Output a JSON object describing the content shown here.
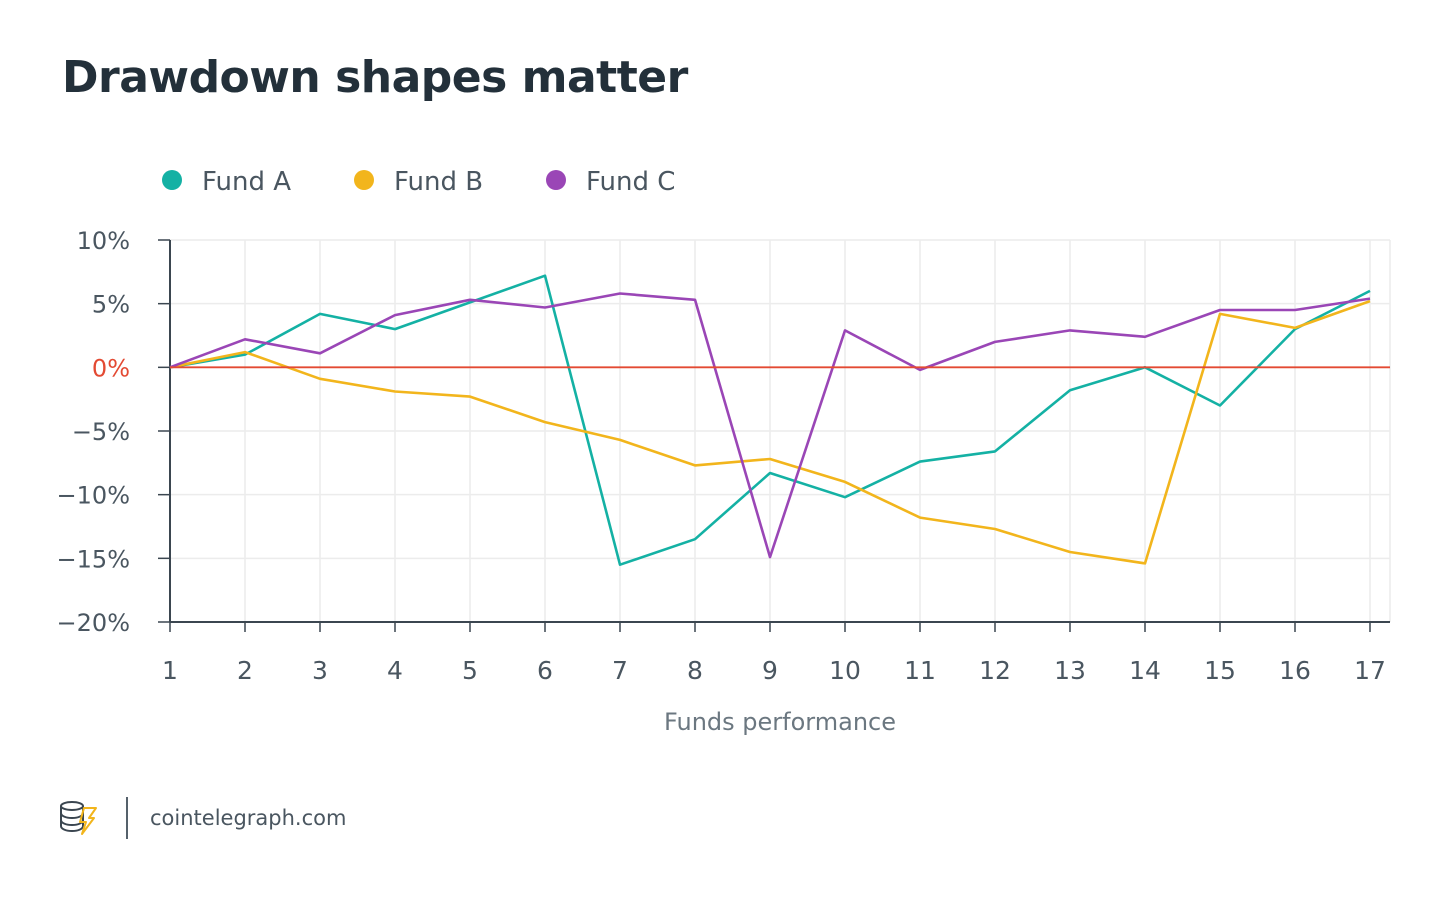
{
  "title": "Drawdown shapes matter",
  "footer": {
    "site": "cointelegraph.com",
    "logo_icon": "cointelegraph-coin-bolt-icon"
  },
  "chart_data": {
    "type": "line",
    "title": "Drawdown shapes matter",
    "xlabel": "Funds performance",
    "ylabel": "",
    "x": [
      1,
      2,
      3,
      4,
      5,
      6,
      7,
      8,
      9,
      10,
      11,
      12,
      13,
      14,
      15,
      16,
      17
    ],
    "ylim": [
      -20,
      10
    ],
    "yticks": [
      10,
      5,
      0,
      -5,
      -10,
      -15,
      -20
    ],
    "ytick_labels": [
      "10%",
      "5%",
      "0%",
      "−5%",
      "−10%",
      "−15%",
      "−20%"
    ],
    "zero_line_color": "#e34a33",
    "grid": true,
    "legend_position": "top-left",
    "series": [
      {
        "name": "Fund A",
        "color": "#14b1a4",
        "values": [
          0,
          1,
          4.2,
          3.0,
          5.1,
          7.2,
          -15.5,
          -13.5,
          -8.3,
          -10.2,
          -7.4,
          -6.6,
          -1.8,
          0,
          -3.0,
          3.0,
          6.0
        ]
      },
      {
        "name": "Fund B",
        "color": "#f2b51c",
        "values": [
          0,
          1.2,
          -0.9,
          -1.9,
          -2.3,
          -4.3,
          -5.7,
          -7.7,
          -7.2,
          -9.0,
          -11.8,
          -12.7,
          -14.5,
          -15.4,
          4.2,
          3.1,
          5.2
        ]
      },
      {
        "name": "Fund C",
        "color": "#9a46b6",
        "values": [
          0,
          2.2,
          1.1,
          4.1,
          5.3,
          4.7,
          5.8,
          5.3,
          -14.9,
          2.9,
          -0.2,
          2.0,
          2.9,
          2.4,
          4.5,
          4.5,
          5.4
        ]
      }
    ]
  }
}
